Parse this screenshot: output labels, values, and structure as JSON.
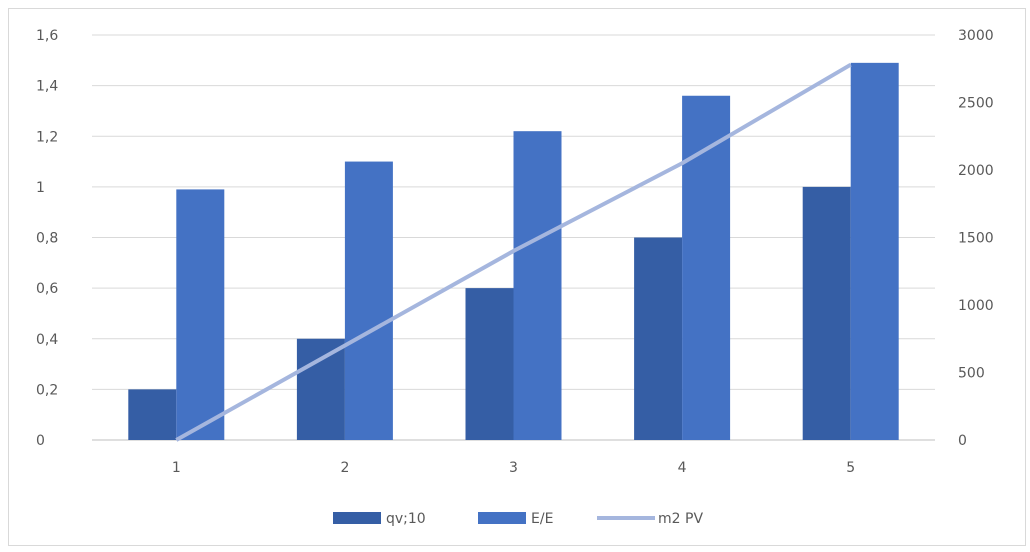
{
  "chart_data": {
    "type": "bar",
    "categories": [
      "1",
      "2",
      "3",
      "4",
      "5"
    ],
    "series": [
      {
        "name": "qv;10",
        "type": "bar",
        "axis": "left",
        "color": "#355EA5",
        "values": [
          0.2,
          0.4,
          0.6,
          0.8,
          1.0
        ]
      },
      {
        "name": "E/E",
        "type": "bar",
        "axis": "left",
        "color": "#4472C4",
        "values": [
          0.99,
          1.1,
          1.22,
          1.36,
          1.49
        ]
      },
      {
        "name": "m2 PV",
        "type": "line",
        "axis": "right",
        "color": "#A5B6DE",
        "values": [
          0,
          700,
          1400,
          2050,
          2780
        ]
      }
    ],
    "y_left": {
      "min": 0,
      "max": 1.6,
      "ticks": [
        "0",
        "0,2",
        "0,4",
        "0,6",
        "0,8",
        "1",
        "1,2",
        "1,4",
        "1,6"
      ]
    },
    "y_right": {
      "min": 0,
      "max": 3000,
      "ticks": [
        "0",
        "500",
        "1000",
        "1500",
        "2000",
        "2500",
        "3000"
      ]
    },
    "grid": true,
    "legend": "bottom"
  }
}
